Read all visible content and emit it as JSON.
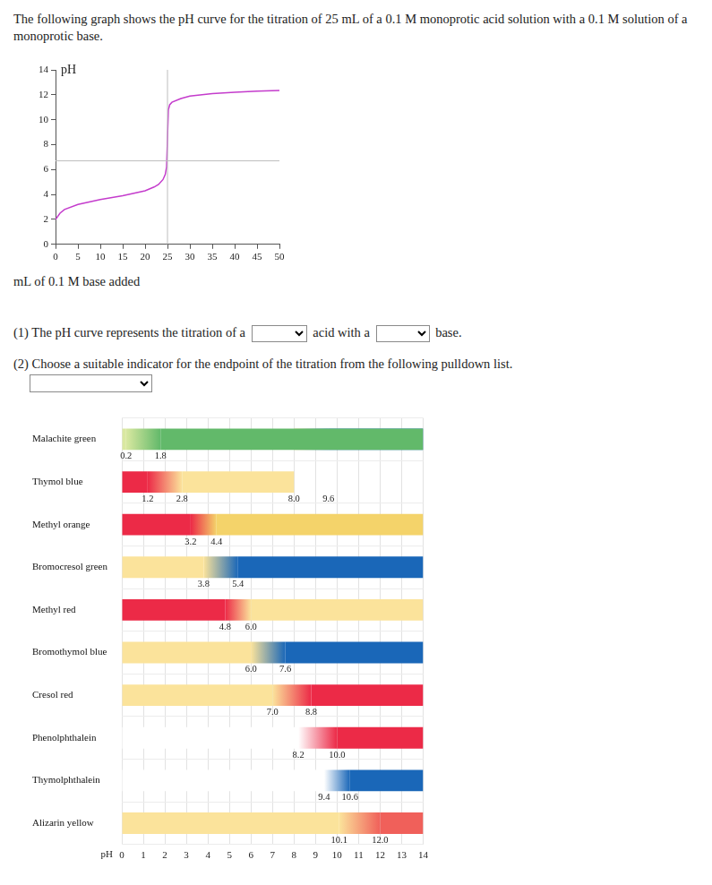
{
  "intro": "The following graph shows the pH curve for the titration of 25 mL of a 0.1 M monoprotic acid solution with a 0.1 M solution of a monoprotic base.",
  "question1": {
    "before": "(1) The pH curve represents the titration of a",
    "middle": "acid with a",
    "after": "base."
  },
  "question2": "(2) Choose a suitable indicator for the endpoint of the titration from the following pulldown list.",
  "chart_data": [
    {
      "type": "line",
      "xlabel": "mL of 0.1 M base added",
      "ylabel": "pH",
      "x": [
        0,
        1,
        2,
        5,
        10,
        15,
        20,
        22,
        23,
        24,
        24.5,
        24.8,
        25,
        25.2,
        25.5,
        26,
        28,
        30,
        35,
        40,
        45,
        50
      ],
      "values": [
        2.0,
        2.5,
        2.8,
        3.2,
        3.6,
        3.9,
        4.3,
        4.6,
        4.8,
        5.2,
        5.6,
        6.2,
        8.5,
        10.8,
        11.2,
        11.4,
        11.7,
        11.9,
        12.1,
        12.2,
        12.3,
        12.35
      ],
      "color": "#c43ccc",
      "xlim": [
        0,
        50
      ],
      "xticks": [
        0,
        5,
        10,
        15,
        20,
        25,
        30,
        35,
        40,
        45,
        50
      ],
      "ylim": [
        0,
        14
      ],
      "yticks": [
        0,
        2,
        4,
        6,
        8,
        10,
        12,
        14
      ],
      "grid": false,
      "vlines": [
        25
      ],
      "hlines": [
        6.7
      ]
    },
    {
      "type": "bar",
      "orientation": "horizontal",
      "xlabel": "pH",
      "categories": [
        "Malachite green",
        "Thymol blue",
        "Methyl orange",
        "Bromocresol green",
        "Methyl red",
        "Bromothymol blue",
        "Cresol red",
        "Phenolphthalein",
        "Thymolphthalein",
        "Alizarin yellow"
      ],
      "ranges": [
        [
          [
            0.2,
            1.8
          ]
        ],
        [
          [
            1.2,
            2.8
          ],
          [
            8.0,
            9.6
          ]
        ],
        [
          [
            3.2,
            4.4
          ]
        ],
        [
          [
            3.8,
            5.4
          ]
        ],
        [
          [
            4.8,
            6.0
          ]
        ],
        [
          [
            6.0,
            7.6
          ]
        ],
        [
          [
            7.0,
            8.8
          ]
        ],
        [
          [
            8.2,
            10.0
          ]
        ],
        [
          [
            9.4,
            10.6
          ]
        ],
        [
          [
            10.1,
            12.0
          ]
        ]
      ],
      "range_labels": [
        [
          [
            "0.2",
            "1.8"
          ]
        ],
        [
          [
            "1.2",
            "2.8"
          ],
          [
            "8.0",
            "9.6"
          ]
        ],
        [
          [
            "3.2",
            "4.4"
          ]
        ],
        [
          [
            "3.8",
            "5.4"
          ]
        ],
        [
          [
            "4.8",
            "6.0"
          ]
        ],
        [
          [
            "6.0",
            "7.6"
          ]
        ],
        [
          [
            "7.0",
            "8.8"
          ]
        ],
        [
          [
            "8.2",
            "10.0"
          ]
        ],
        [
          [
            "9.4",
            "10.6"
          ]
        ],
        [
          [
            "10.1",
            "12.0"
          ]
        ]
      ],
      "colors": [
        [
          "#d9e8a0",
          "#62b96a"
        ],
        [
          "#ec2a47",
          "#fbe39b",
          "#1a67b8"
        ],
        [
          "#ec2a47",
          "#f4d36a"
        ],
        [
          "#fbe39b",
          "#1a67b8"
        ],
        [
          "#ec2a47",
          "#fbe39b"
        ],
        [
          "#fbe39b",
          "#1a67b8"
        ],
        [
          "#fbe39b",
          "#ec2a47"
        ],
        [
          "#ffffff",
          "#ec2a47"
        ],
        [
          "#ffffff",
          "#1a67b8"
        ],
        [
          "#fbe39b",
          "#f0605a"
        ]
      ],
      "xlim": [
        0,
        14
      ],
      "xticks": [
        0,
        1,
        2,
        3,
        4,
        5,
        6,
        7,
        8,
        9,
        10,
        11,
        12,
        13,
        14
      ],
      "grid": true,
      "data_labels": true
    }
  ]
}
